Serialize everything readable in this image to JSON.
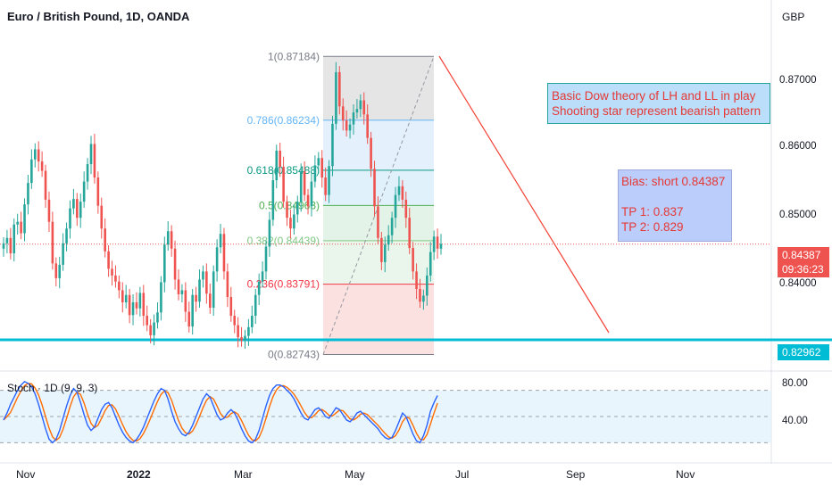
{
  "chart_data": {
    "type": "candlestick",
    "title": "Euro / British Pound, 1D, OANDA",
    "currency": "GBP",
    "y_axis_ticks": [
      "0.87000",
      "0.86000",
      "0.85000",
      "0.84000"
    ],
    "x_axis_ticks": [
      "Nov",
      "2022",
      "Mar",
      "May",
      "Jul",
      "Sep",
      "Nov"
    ],
    "ylim": [
      0.8255,
      0.8756
    ],
    "last_price": "0.84387",
    "countdown": "09:36:23",
    "support_level": "0.82962",
    "fib_levels": [
      {
        "label": "1(0.87184)",
        "value": 0.87184,
        "color": "#787b86"
      },
      {
        "label": "0.786(0.86234)",
        "value": 0.86234,
        "color": "#64b5f6"
      },
      {
        "label": "0.618(0.85488)",
        "value": 0.85488,
        "color": "#089981"
      },
      {
        "label": "0.5(0.84963)",
        "value": 0.84963,
        "color": "#4caf50"
      },
      {
        "label": "0.382(0.84439)",
        "value": 0.84439,
        "color": "#81c784"
      },
      {
        "label": "0.236(0.83791)",
        "value": 0.83791,
        "color": "#f23645"
      },
      {
        "label": "0(0.82743)",
        "value": 0.82743,
        "color": "#787b86"
      }
    ],
    "closes": [
      0.844,
      0.8448,
      0.8425,
      0.8468,
      0.8472,
      0.8455,
      0.8498,
      0.853,
      0.8565,
      0.858,
      0.8562,
      0.8548,
      0.8505,
      0.8472,
      0.841,
      0.8388,
      0.8408,
      0.844,
      0.8462,
      0.8492,
      0.8506,
      0.8478,
      0.8502,
      0.8532,
      0.8558,
      0.8588,
      0.8538,
      0.8496,
      0.8462,
      0.8428,
      0.8402,
      0.8392,
      0.8383,
      0.837,
      0.8352,
      0.8363,
      0.8333,
      0.8352,
      0.8343,
      0.8366,
      0.8332,
      0.8318,
      0.8303,
      0.8322,
      0.8337,
      0.8382,
      0.8438,
      0.8458,
      0.8432,
      0.8386,
      0.8364,
      0.837,
      0.8338,
      0.8316,
      0.8363,
      0.8353,
      0.8386,
      0.8398,
      0.8365,
      0.8344,
      0.8398,
      0.8434,
      0.8454,
      0.8398,
      0.836,
      0.8332,
      0.8318,
      0.83,
      0.8295,
      0.8302,
      0.8315,
      0.8332,
      0.8363,
      0.8383,
      0.8398,
      0.8435,
      0.8475,
      0.8534,
      0.8578,
      0.8554,
      0.8502,
      0.8478,
      0.8462,
      0.8483,
      0.8502,
      0.8547,
      0.8512,
      0.8495,
      0.8532,
      0.8556,
      0.8567,
      0.8538,
      0.8512,
      0.8555,
      0.8618,
      0.8695,
      0.8644,
      0.8623,
      0.8608,
      0.8617,
      0.8635,
      0.864,
      0.8653,
      0.8632,
      0.8597,
      0.8551,
      0.8495,
      0.8448,
      0.8412,
      0.8438,
      0.8452,
      0.8478,
      0.8512,
      0.8525,
      0.8505,
      0.8478,
      0.8433,
      0.8398,
      0.8372,
      0.8353,
      0.8362,
      0.8392,
      0.8427,
      0.845,
      0.8432,
      0.8439
    ],
    "annotations": {
      "dow_box": [
        "Basic Dow theory of LH and LL in play",
        "Shooting star represent bearish pattern"
      ],
      "bias_box": [
        "Bias: short 0.84387",
        "",
        "TP 1: 0.837",
        "TP 2: 0.829"
      ]
    },
    "stochastic": {
      "label": "Stoch · 1D (9, 9, 3)",
      "ticks": [
        "80.00",
        "40.00"
      ],
      "ylim": [
        0,
        100
      ],
      "upper_band": 80,
      "middle_band": 50,
      "lower_band": 20,
      "k": [
        46,
        54,
        64,
        72,
        80,
        86,
        90,
        88,
        84,
        76,
        64,
        50,
        36,
        24,
        20,
        24,
        34,
        48,
        62,
        74,
        82,
        78,
        66,
        52,
        40,
        34,
        38,
        48,
        58,
        64,
        66,
        60,
        50,
        40,
        32,
        26,
        22,
        20,
        24,
        30,
        38,
        48,
        58,
        68,
        76,
        82,
        80,
        70,
        56,
        44,
        36,
        30,
        28,
        32,
        40,
        50,
        60,
        70,
        76,
        72,
        62,
        52,
        46,
        48,
        54,
        58,
        54,
        46,
        36,
        28,
        22,
        20,
        24,
        34,
        48,
        62,
        74,
        82,
        86,
        86,
        84,
        80,
        76,
        70,
        62,
        54,
        48,
        46,
        52,
        58,
        60,
        56,
        50,
        48,
        54,
        60,
        58,
        52,
        46,
        44,
        48,
        54,
        56,
        52,
        48,
        44,
        40,
        36,
        30,
        26,
        24,
        26,
        34,
        44,
        54,
        50,
        40,
        30,
        22,
        20,
        28,
        40,
        56,
        66,
        74
      ],
      "colors": {
        "k": "#2962ff",
        "d": "#ff6d00"
      }
    }
  },
  "colors": {
    "up": "#26a69a",
    "down": "#ef5350",
    "support": "#00bcd4",
    "trendline": "#f44336",
    "band_fill": "#e3f2fd",
    "panel_bg": "#ffffff"
  }
}
